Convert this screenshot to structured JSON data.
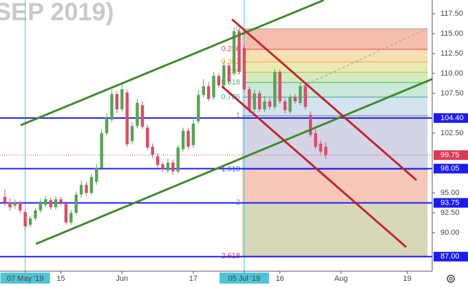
{
  "chart_data": {
    "type": "candlestick",
    "watermark": "SEP 2019)",
    "xlim": [
      -0.95,
      83.9
    ],
    "ylim": [
      85.17,
      119.22
    ],
    "xticks": [
      {
        "value": 4,
        "label": "07 May '19"
      },
      {
        "value": 11,
        "label": "15"
      },
      {
        "value": 23,
        "label": "Jun"
      },
      {
        "value": 37,
        "label": "17"
      },
      {
        "value": 47,
        "label": "05 Jul '19"
      },
      {
        "value": 54,
        "label": "16"
      },
      {
        "value": 66,
        "label": "Aug"
      },
      {
        "value": 79,
        "label": "19"
      }
    ],
    "markers_x": [
      4,
      47
    ],
    "yticks": [
      {
        "value": 117.5,
        "label": "117.50"
      },
      {
        "value": 115,
        "label": "115.00"
      },
      {
        "value": 112.5,
        "label": "112.50"
      },
      {
        "value": 110,
        "label": "110.00"
      },
      {
        "value": 107.5,
        "label": "107.50"
      },
      {
        "value": 102.5,
        "label": "102.50"
      },
      {
        "value": 95,
        "label": "95.00"
      },
      {
        "value": 92.5,
        "label": "92.50"
      },
      {
        "value": 90,
        "label": "90.00"
      }
    ],
    "up_color": "#53a653",
    "down_color": "#dd4a68",
    "candles": {
      "x": [
        0,
        1,
        2,
        3,
        4,
        5,
        6,
        7,
        8,
        9,
        10,
        11,
        12,
        13,
        14,
        15,
        16,
        17,
        18,
        19,
        20,
        21,
        22,
        23,
        24,
        25,
        26,
        27,
        28,
        29,
        30,
        31,
        32,
        33,
        34,
        35,
        36,
        37,
        38,
        39,
        40,
        41,
        42,
        43,
        44,
        45,
        46,
        47,
        48,
        49,
        50,
        51,
        52,
        53,
        54,
        55,
        56,
        57,
        58,
        59,
        60,
        61,
        62,
        63
      ],
      "open": [
        94.5,
        93.8,
        93.4,
        93.8,
        92.6,
        91.0,
        91.8,
        92.8,
        93.5,
        94.1,
        93.2,
        94.2,
        93.6,
        91.3,
        92.5,
        94.8,
        96.0,
        95.0,
        96.4,
        98.1,
        102.5,
        104.2,
        107.4,
        105.5,
        107.6,
        101.5,
        103.4,
        106.0,
        103.2,
        100.8,
        99.6,
        98.6,
        97.8,
        98.8,
        97.7,
        100.5,
        102.8,
        101.0,
        104.0,
        107.3,
        108.4,
        107.0,
        109.7,
        108.5,
        111.0,
        110.0,
        115.3,
        113.2,
        108.0,
        105.5,
        107.5,
        105.5,
        106.5,
        105.8,
        110.2,
        106.5,
        105.2,
        107.0,
        106.3,
        108.4,
        104.8,
        102.5,
        101.2,
        100.8
      ],
      "high": [
        95.5,
        94.3,
        94.2,
        94.0,
        92.9,
        92.1,
        93.1,
        94.3,
        94.6,
        94.4,
        94.6,
        94.5,
        93.9,
        92.9,
        95.2,
        96.5,
        96.4,
        97.4,
        98.6,
        103.0,
        105.0,
        108.0,
        107.8,
        108.8,
        108.0,
        103.9,
        106.8,
        106.5,
        103.6,
        101.2,
        100.0,
        98.9,
        99.3,
        99.2,
        101.0,
        103.2,
        103.1,
        104.2,
        107.9,
        109.3,
        108.9,
        110.2,
        110.0,
        111.6,
        111.3,
        115.8,
        115.6,
        113.6,
        108.4,
        108.0,
        107.9,
        107.2,
        106.9,
        110.6,
        110.5,
        106.9,
        107.4,
        107.4,
        108.8,
        108.7,
        105.2,
        103.0,
        101.6,
        101.4
      ],
      "low": [
        93.4,
        92.8,
        93.0,
        92.4,
        90.3,
        90.7,
        91.5,
        92.5,
        93.2,
        92.9,
        92.9,
        93.4,
        91.0,
        91.0,
        92.2,
        94.4,
        94.7,
        94.7,
        96.0,
        97.8,
        102.2,
        103.9,
        105.0,
        105.2,
        100.8,
        101.1,
        103.1,
        103.0,
        100.4,
        99.4,
        98.2,
        97.6,
        97.5,
        97.3,
        97.4,
        100.2,
        100.5,
        100.7,
        103.7,
        107.0,
        106.5,
        106.7,
        108.2,
        108.2,
        108.7,
        109.7,
        109.9,
        107.7,
        105.0,
        105.1,
        105.2,
        105.2,
        105.4,
        105.5,
        106.2,
        105.0,
        104.9,
        106.2,
        106.0,
        105.5,
        102.0,
        100.5,
        99.9,
        99.3
      ],
      "close": [
        93.8,
        93.2,
        93.8,
        92.8,
        90.8,
        91.8,
        92.8,
        93.9,
        94.2,
        93.2,
        94.2,
        93.8,
        91.3,
        92.5,
        94.8,
        96.0,
        95.0,
        97.0,
        98.1,
        102.5,
        104.4,
        107.4,
        105.5,
        108.0,
        101.1,
        103.4,
        106.3,
        103.3,
        100.7,
        99.8,
        98.5,
        98.0,
        98.8,
        97.7,
        100.7,
        102.8,
        100.8,
        103.7,
        107.3,
        108.4,
        106.8,
        109.7,
        108.5,
        111.0,
        109.0,
        115.3,
        110.2,
        108.0,
        105.4,
        107.5,
        105.5,
        106.5,
        105.8,
        110.2,
        106.5,
        105.4,
        107.0,
        106.5,
        108.4,
        105.8,
        102.3,
        100.8,
        100.2,
        99.75
      ]
    },
    "fib": {
      "x": [
        46.6,
        83
      ],
      "high": 115.6,
      "low": 104.7,
      "levels": [
        0,
        0.236,
        0.382,
        0.5,
        0.618,
        0.786,
        1,
        1.618,
        2,
        2.618
      ],
      "colors": [
        "#9e9e9e",
        "#e0424a",
        "#e8a33a",
        "#a6c23c",
        "#40b86a",
        "#3aa7a0",
        "#8a8a8a",
        "#3f6fd6",
        "#3ab0b8",
        "#c8306a"
      ],
      "band_colors": [
        "#f2a890",
        "#f2d49a",
        "#e2e49a",
        "#c6e4aa",
        "#b8e2cc",
        "#c4d9ea",
        "#c4c6dc",
        "#f4b6a0",
        "#c9c9a2"
      ]
    },
    "trendlines": [
      {
        "color": "#3f8a2a",
        "points": [
          [
            3.1,
            103.5
          ],
          [
            62.6,
            119.2
          ]
        ]
      },
      {
        "color": "#3f8a2a",
        "points": [
          [
            6.1,
            88.6
          ],
          [
            83.9,
            109.3
          ]
        ]
      },
      {
        "color": "#c0262c",
        "points": [
          [
            44.6,
            116.8
          ],
          [
            80.8,
            96.6
          ]
        ]
      },
      {
        "color": "#c0262c",
        "points": [
          [
            42.6,
            108.4
          ],
          [
            78.8,
            88.2
          ]
        ]
      }
    ],
    "dashed_line": {
      "color": "#9e9e9e",
      "points": [
        [
          58.5,
          108.4
        ],
        [
          82.8,
          115.6
        ]
      ]
    },
    "price_lines": [
      {
        "value": 104.4,
        "label": "104.40",
        "color": "#1c1cf0",
        "style": "solid"
      },
      {
        "value": 98.05,
        "label": "98.05",
        "color": "#1c1cf0",
        "style": "solid"
      },
      {
        "value": 93.75,
        "label": "93.75",
        "color": "#1c1cf0",
        "style": "solid"
      },
      {
        "value": 87,
        "label": "87.00",
        "color": "#1c1cf0",
        "style": "solid"
      },
      {
        "value": 99.75,
        "label": "99.75",
        "color": "#d93a55",
        "style": "dotted"
      }
    ]
  }
}
